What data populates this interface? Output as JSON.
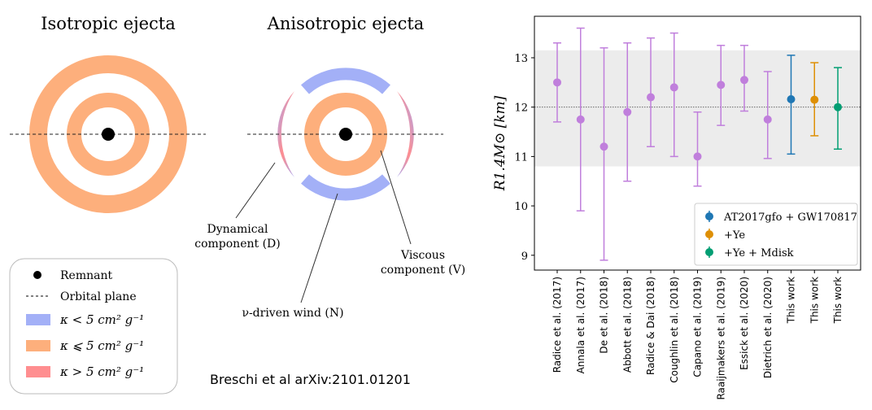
{
  "diagram": {
    "isotropic_title": "Isotropic ejecta",
    "anisotropic_title": "Anisotropic ejecta",
    "dynamical_label": [
      "Dynamical",
      "component (D)"
    ],
    "wind_label": "ν-driven wind (N)",
    "viscous_label": [
      "Viscous",
      "component (V)"
    ],
    "legend": [
      "Remnant",
      "Orbital plane",
      "κ < 5 cm² g⁻¹",
      "κ ⩽ 5 cm² g⁻¹",
      "κ > 5 cm² g⁻¹"
    ],
    "citation": "Breschi et al arXiv:2101.01201"
  },
  "chart_data": {
    "type": "errorbar",
    "y_label": "R1.4M⊙ [km]",
    "categories": [
      "Radice et al. (2017)",
      "Annala et al. (2017)",
      "De et al. (2018)",
      "Abbott et al. (2018)",
      "Radice & Dai (2018)",
      "Coughlin et al. (2018)",
      "Capano et al. (2019)",
      "Raaijmakers et al. (2019)",
      "Essick et al. (2020)",
      "Dietrich et al. (2020)",
      "This work",
      "This work",
      "This work"
    ],
    "series": [
      {
        "color": "#c07fdc",
        "values": [
          12.5,
          11.75,
          11.2,
          11.9,
          12.2,
          12.4,
          11.0,
          12.45,
          12.55,
          11.75,
          null,
          null,
          null
        ],
        "error_plus": [
          0.8,
          1.85,
          2.0,
          1.4,
          1.2,
          1.1,
          0.9,
          0.8,
          0.7,
          0.97,
          null,
          null,
          null
        ],
        "error_minus": [
          0.8,
          1.85,
          2.3,
          1.4,
          1.0,
          1.4,
          0.6,
          0.82,
          0.63,
          0.79,
          null,
          null,
          null
        ]
      },
      {
        "name": "AT2017gfo + GW170817",
        "color": "#1f77b4",
        "values": [
          null,
          null,
          null,
          null,
          null,
          null,
          null,
          null,
          null,
          null,
          12.16,
          null,
          null
        ],
        "error_plus": [
          null,
          null,
          null,
          null,
          null,
          null,
          null,
          null,
          null,
          null,
          0.89,
          null,
          null
        ],
        "error_minus": [
          null,
          null,
          null,
          null,
          null,
          null,
          null,
          null,
          null,
          null,
          1.11,
          null,
          null
        ]
      },
      {
        "name": "+Ye",
        "color": "#de8f05",
        "values": [
          null,
          null,
          null,
          null,
          null,
          null,
          null,
          null,
          null,
          null,
          null,
          12.15,
          null
        ],
        "error_plus": [
          null,
          null,
          null,
          null,
          null,
          null,
          null,
          null,
          null,
          null,
          null,
          0.75,
          null
        ],
        "error_minus": [
          null,
          null,
          null,
          null,
          null,
          null,
          null,
          null,
          null,
          null,
          null,
          0.73,
          null
        ]
      },
      {
        "name": "+Ye + Mdisk",
        "color": "#029e73",
        "values": [
          null,
          null,
          null,
          null,
          null,
          null,
          null,
          null,
          null,
          null,
          null,
          null,
          12.0
        ],
        "error_plus": [
          null,
          null,
          null,
          null,
          null,
          null,
          null,
          null,
          null,
          null,
          null,
          null,
          0.8
        ],
        "error_minus": [
          null,
          null,
          null,
          null,
          null,
          null,
          null,
          null,
          null,
          null,
          null,
          null,
          0.85
        ]
      }
    ],
    "band": [
      10.8,
      13.15
    ],
    "reference_line": 12,
    "ylim": [
      8.7,
      13.84
    ],
    "yticks": [
      9,
      10,
      11,
      12,
      13
    ],
    "legend": "lower right"
  }
}
